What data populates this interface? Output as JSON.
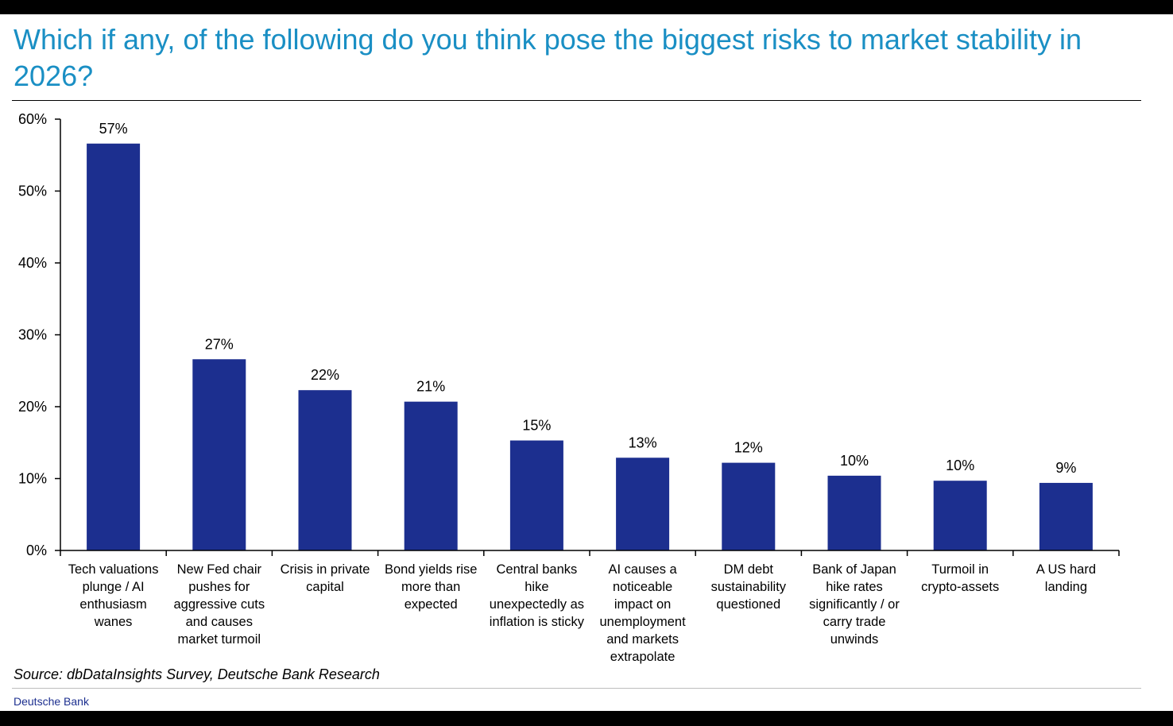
{
  "page": {
    "title": "Which if any, of the following do you think pose the biggest risks to market stability in 2026?",
    "source": "Source: dbDataInsights Survey, Deutsche Bank Research",
    "brand": "Deutsche Bank"
  },
  "colors": {
    "title": "#1a8fc4",
    "bar": "#1c2f8f",
    "brand": "#1c2f8f"
  },
  "chart_data": {
    "type": "bar",
    "title": "Which if any, of the following do you think pose the biggest risks to market stability in 2026?",
    "xlabel": "",
    "ylabel": "",
    "ylim": [
      0,
      60
    ],
    "yticks": [
      0,
      10,
      20,
      30,
      40,
      50,
      60
    ],
    "ytick_labels": [
      "0%",
      "10%",
      "20%",
      "30%",
      "40%",
      "50%",
      "60%"
    ],
    "grid": false,
    "categories": [
      "Tech valuations plunge / AI enthusiasm wanes",
      "New Fed chair pushes for aggressive cuts and causes market turmoil",
      "Crisis in private capital",
      "Bond yields rise more than expected",
      "Central banks hike unexpectedly as inflation is sticky",
      "AI causes a noticeable impact on unemployment and markets extrapolate",
      "DM debt sustainability questioned",
      "Bank of Japan hike rates significantly / or carry trade unwinds",
      "Turmoil in crypto-assets",
      "A US hard landing"
    ],
    "category_lines": [
      "Tech valuations\nplunge / AI\nenthusiasm\nwanes",
      "New Fed chair\npushes for\naggressive cuts\nand causes\nmarket turmoil",
      "Crisis in private\ncapital",
      "Bond yields rise\nmore than\nexpected",
      "Central banks\nhike\nunexpectedly as\ninflation is sticky",
      "AI causes a\nnoticeable\nimpact on\nunemployment\nand markets\nextrapolate",
      "DM debt\nsustainability\nquestioned",
      "Bank of Japan\nhike rates\nsignificantly / or\ncarry trade\nunwinds",
      "Turmoil in\ncrypto-assets",
      "A US hard\nlanding"
    ],
    "values": [
      56.6,
      26.6,
      22.3,
      20.7,
      15.3,
      12.9,
      12.2,
      10.4,
      9.7,
      9.4
    ],
    "value_labels": [
      "57%",
      "27%",
      "22%",
      "21%",
      "15%",
      "13%",
      "12%",
      "10%",
      "10%",
      "9%"
    ]
  }
}
